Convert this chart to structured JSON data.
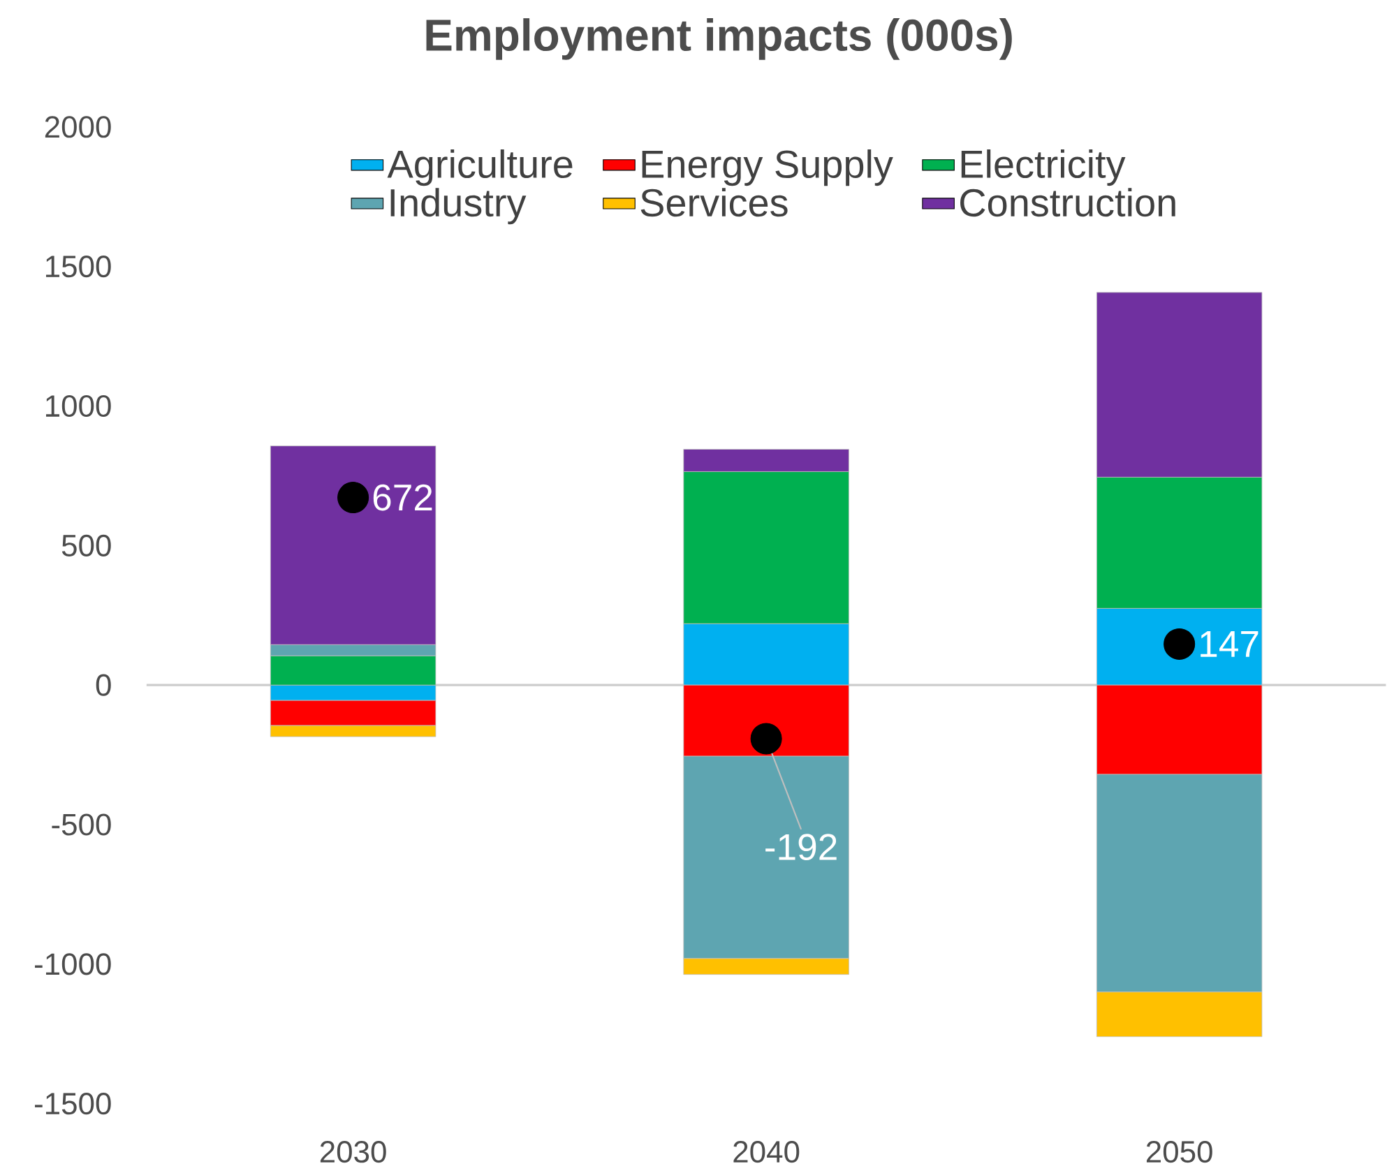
{
  "chart_data": {
    "type": "bar",
    "title": "Employment impacts (000s)",
    "stacked": true,
    "categories": [
      "2030",
      "2040",
      "2050"
    ],
    "series": [
      {
        "name": "Agriculture",
        "color": "#00b0f0",
        "values": [
          -55,
          220,
          275
        ]
      },
      {
        "name": "Energy Supply",
        "color": "#ff0000",
        "values": [
          -90,
          -255,
          -320
        ]
      },
      {
        "name": "Electricity",
        "color": "#00b050",
        "values": [
          105,
          545,
          470
        ]
      },
      {
        "name": "Industry",
        "color": "#5ea5b1",
        "values": [
          40,
          -725,
          -780
        ]
      },
      {
        "name": "Services",
        "color": "#ffc000",
        "values": [
          -40,
          -57,
          -160
        ]
      },
      {
        "name": "Construction",
        "color": "#7030a0",
        "values": [
          712,
          80,
          662
        ]
      },
      {
        "type": "scatter",
        "color": "#000000",
        "values": [
          672,
          -192,
          147
        ],
        "value_labels": [
          "672",
          "-192",
          "147"
        ]
      }
    ],
    "ylim": [
      -1500,
      2000
    ],
    "yticks": [
      -1500,
      -1000,
      -500,
      0,
      500,
      1000,
      1500,
      2000
    ],
    "legend": "top"
  }
}
